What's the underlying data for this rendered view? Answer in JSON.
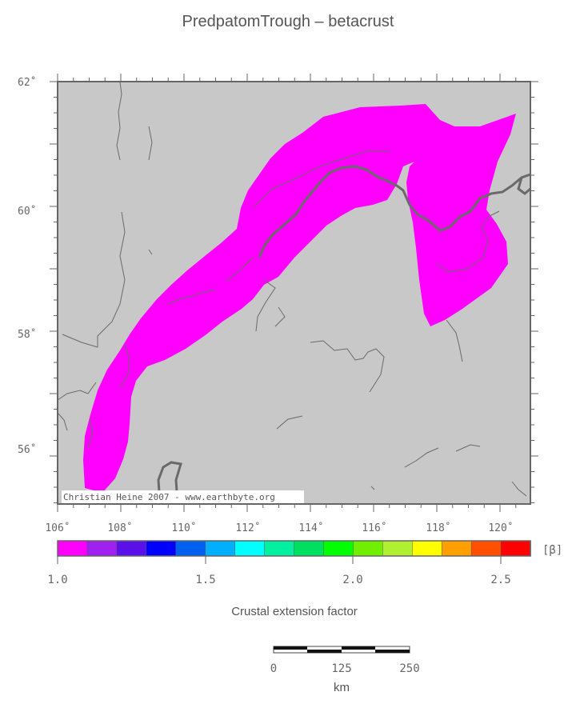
{
  "title": "PredpatomTrough – betacrust",
  "map": {
    "background_color": "#c8c8c8",
    "extension_color": "#ff00ff",
    "credit": "Christian Heine 2007 - www.earthbyte.org",
    "lat_labels": [
      "62˚",
      "60˚",
      "58˚",
      "56˚"
    ],
    "lon_labels": [
      "106˚",
      "108˚",
      "110˚",
      "112˚",
      "114˚",
      "116˚",
      "118˚",
      "120˚"
    ]
  },
  "colorbar": {
    "unit_label": "[β]",
    "tick_labels": [
      "1.0",
      "1.5",
      "2.0",
      "2.5"
    ],
    "colors": [
      "#ff00ff",
      "#a020f0",
      "#5a10e8",
      "#0000ff",
      "#0060f0",
      "#00b0ff",
      "#00ffff",
      "#00f0a0",
      "#00e060",
      "#00ff00",
      "#70f000",
      "#b0f030",
      "#ffff00",
      "#ffa000",
      "#ff5000",
      "#ff0000"
    ],
    "caption": "Crustal extension factor"
  },
  "scalebar": {
    "tick_labels": [
      "0",
      "125",
      "250"
    ],
    "unit": "km"
  }
}
